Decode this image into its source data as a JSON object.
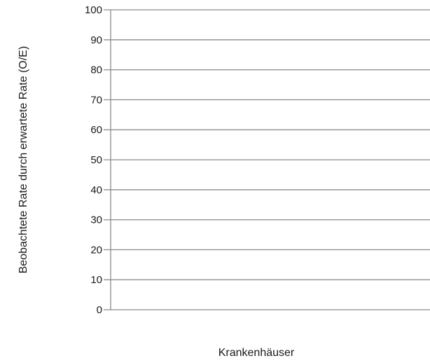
{
  "chart_data": {
    "type": "bar",
    "categories": [],
    "series": [],
    "xlabel": "Krankenhäuser",
    "ylabel": "Beobachtete Rate durch erwartete Rate (O/E)",
    "ylim": [
      0,
      100
    ],
    "yticks": [
      0,
      10,
      20,
      30,
      40,
      50,
      60,
      70,
      80,
      90,
      100
    ],
    "grid": true,
    "legend": "none"
  }
}
